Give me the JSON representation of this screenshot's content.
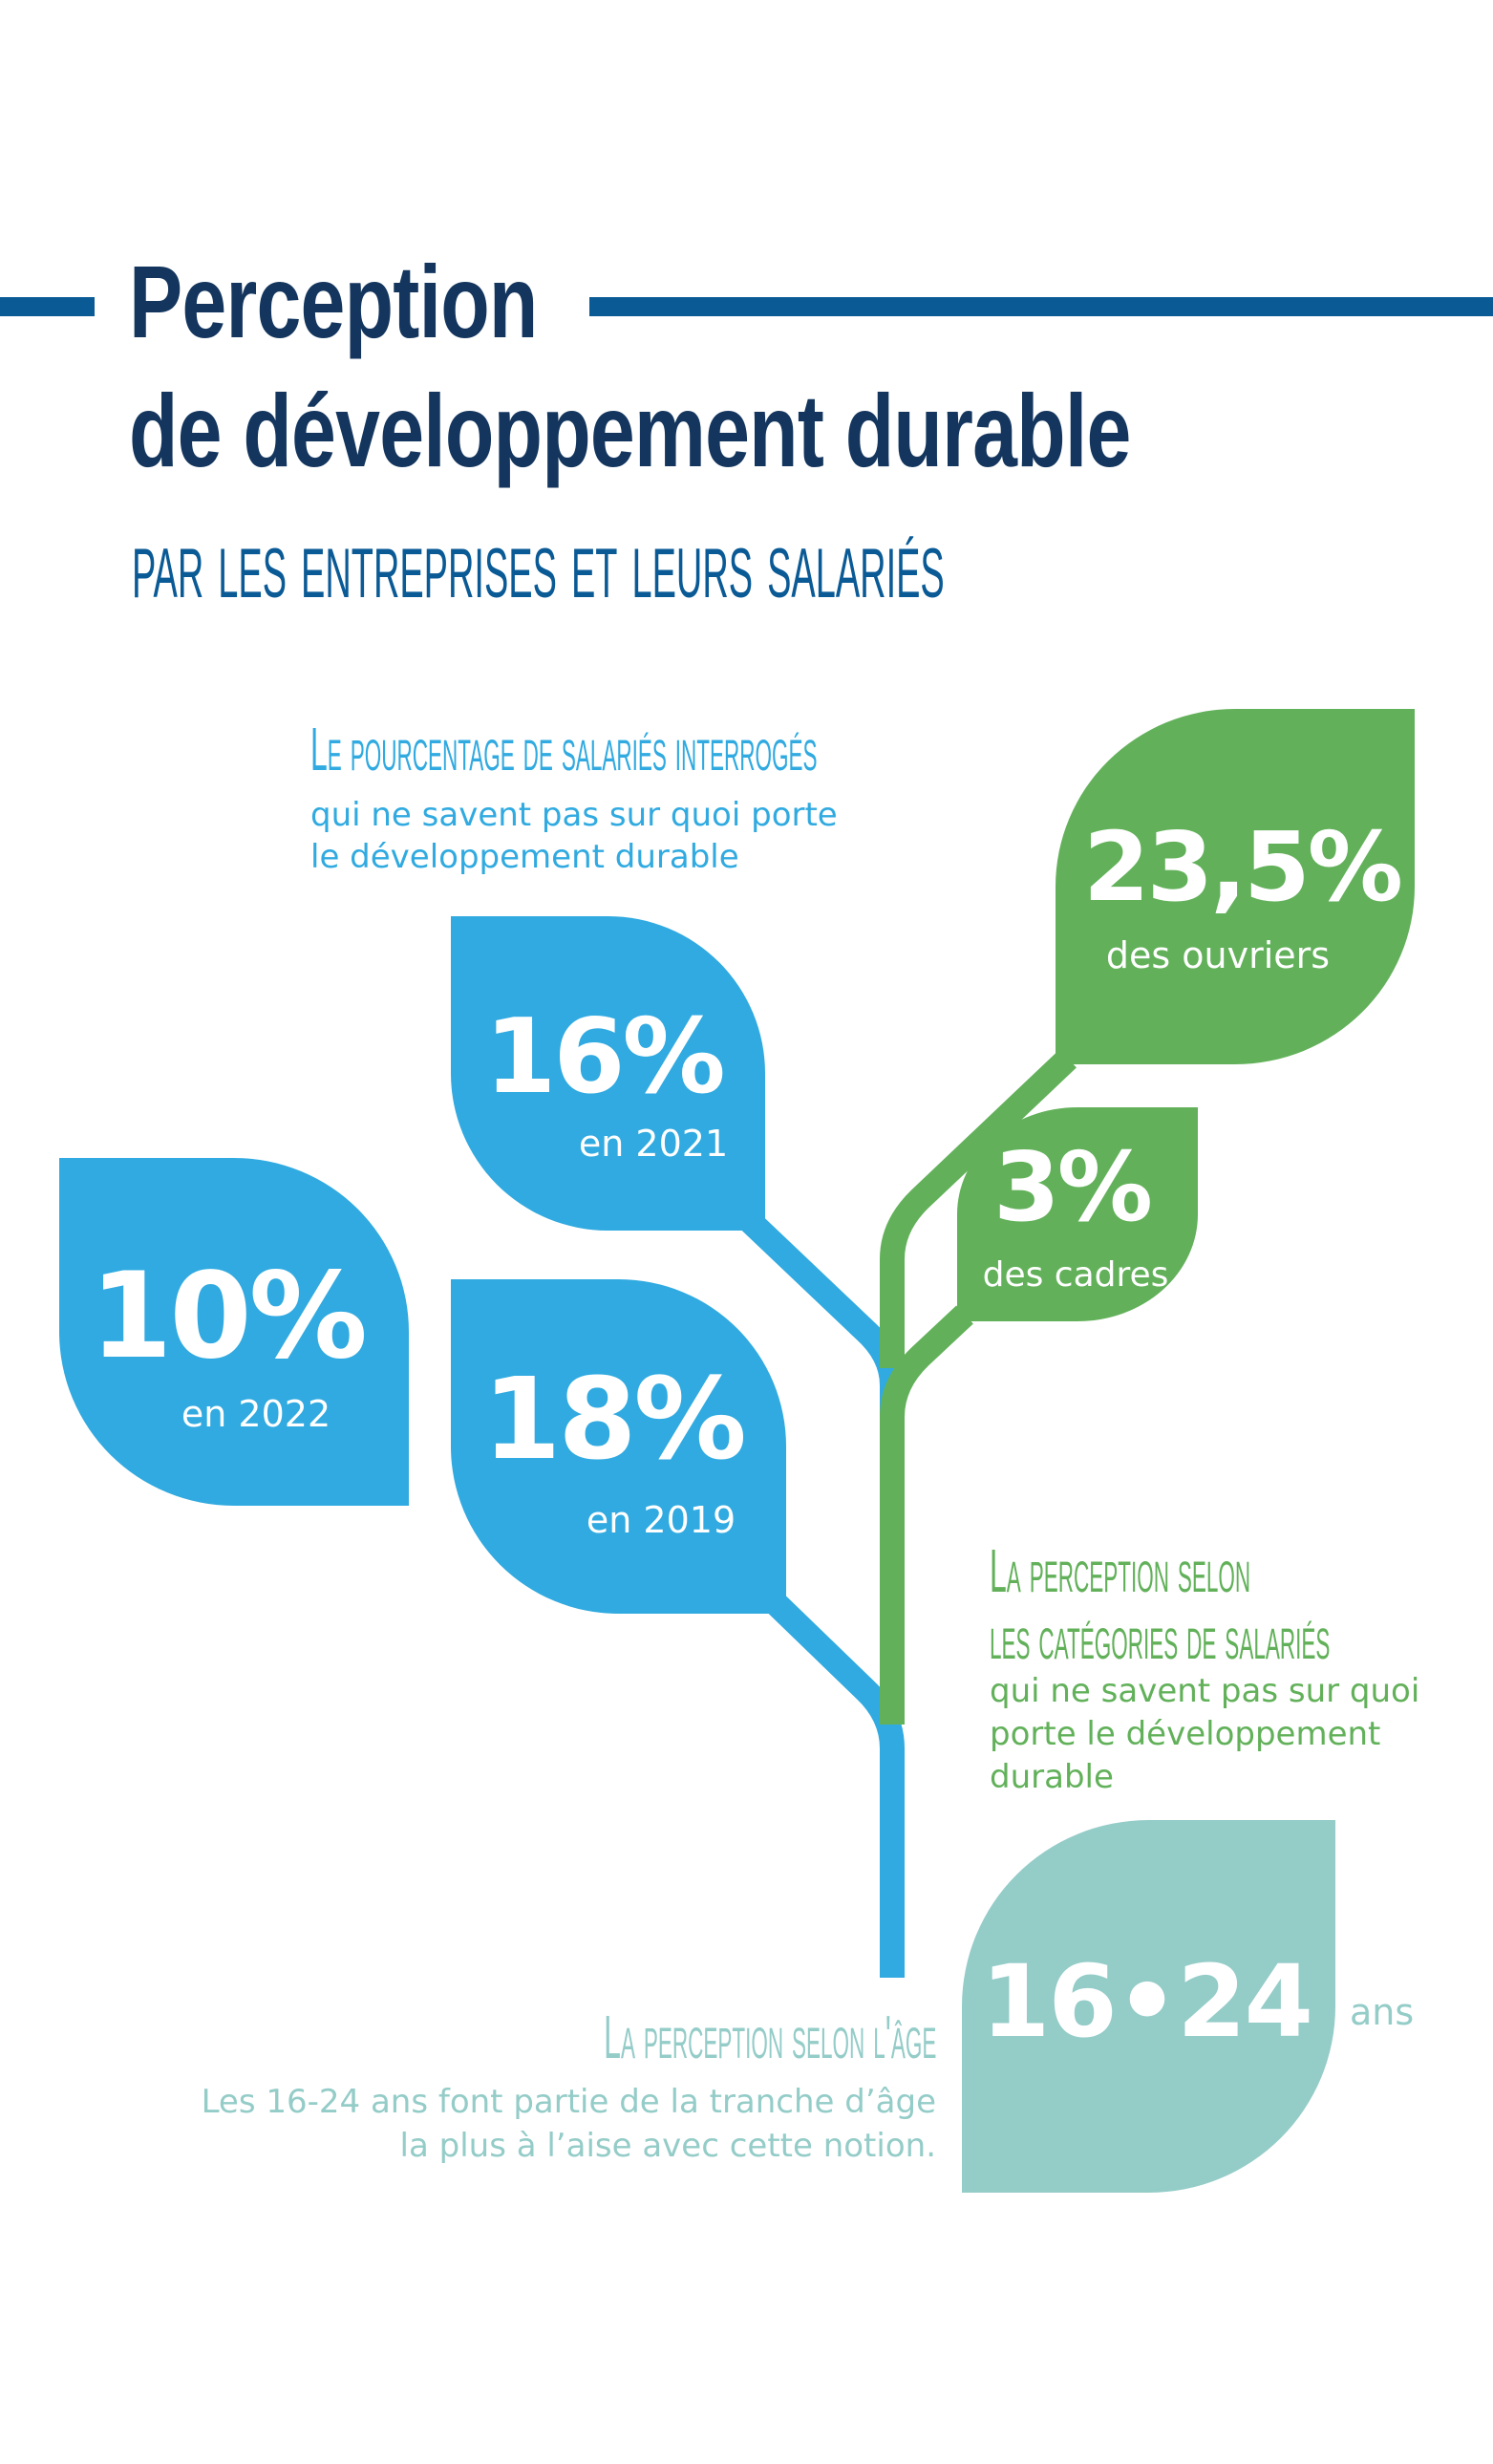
{
  "colors": {
    "navy": "#14365e",
    "title_blue": "#0a5a96",
    "blue": "#30aae0",
    "green": "#62b15a",
    "teal": "#94ccc8"
  },
  "header": {
    "title_line1": "Perception",
    "title_line2": "de développement durable",
    "subtitle": "par les entreprises et leurs salariés"
  },
  "survey": {
    "heading": "Le pourcentage de salariés interrogés",
    "desc_line1": "qui ne savent pas sur quoi porte",
    "desc_line2": "le développement durable",
    "leaves": [
      {
        "value": "16%",
        "label": "en 2021"
      },
      {
        "value": "10%",
        "label": "en 2022"
      },
      {
        "value": "18%",
        "label": "en 2019"
      }
    ]
  },
  "categories": {
    "heading_line1": "La perception selon",
    "heading_line2": "les catégories de salariés",
    "desc_line1": "qui ne savent pas sur quoi",
    "desc_line2": "porte le développement",
    "desc_line3": "durable",
    "leaves": [
      {
        "value": "23,5%",
        "label": "des ouvriers"
      },
      {
        "value": "3%",
        "label": "des cadres"
      }
    ]
  },
  "age": {
    "heading": "La perception selon l'âge",
    "desc_line1": "Les 16-24 ans font partie de la tranche d’âge",
    "desc_line2": "la plus à l’aise avec cette notion.",
    "value": "16•24",
    "unit": "ans"
  }
}
